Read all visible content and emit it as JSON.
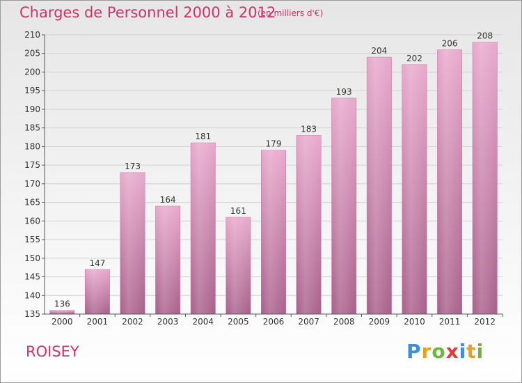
{
  "title": "Charges de Personnel 2000 à 2012",
  "subtitle": "(en milliers d'€)",
  "place": "ROISEY",
  "logo": {
    "letters": [
      {
        "ch": "P",
        "color": "#3a8fd8"
      },
      {
        "ch": "r",
        "color": "#e8a020"
      },
      {
        "ch": "o",
        "color": "#6cb43c"
      },
      {
        "ch": "x",
        "color": "#e03c3c"
      },
      {
        "ch": "i",
        "color": "#3a8fd8"
      },
      {
        "ch": "t",
        "color": "#e8a020"
      },
      {
        "ch": "i",
        "color": "#6cb43c"
      }
    ]
  },
  "colors": {
    "accent": "#cc3366",
    "bar_top": "#e8a8cc",
    "bar_bottom": "#a8608a"
  },
  "chart_data": {
    "type": "bar",
    "categories": [
      "2000",
      "2001",
      "2002",
      "2003",
      "2004",
      "2005",
      "2006",
      "2007",
      "2008",
      "2009",
      "2010",
      "2011",
      "2012"
    ],
    "values": [
      136,
      147,
      173,
      164,
      181,
      161,
      179,
      183,
      193,
      204,
      202,
      206,
      208
    ],
    "ylim": [
      135,
      210
    ],
    "yticks": [
      135,
      140,
      145,
      150,
      155,
      160,
      165,
      170,
      175,
      180,
      185,
      190,
      195,
      200,
      205,
      210
    ],
    "grid": true,
    "legend": "none"
  }
}
